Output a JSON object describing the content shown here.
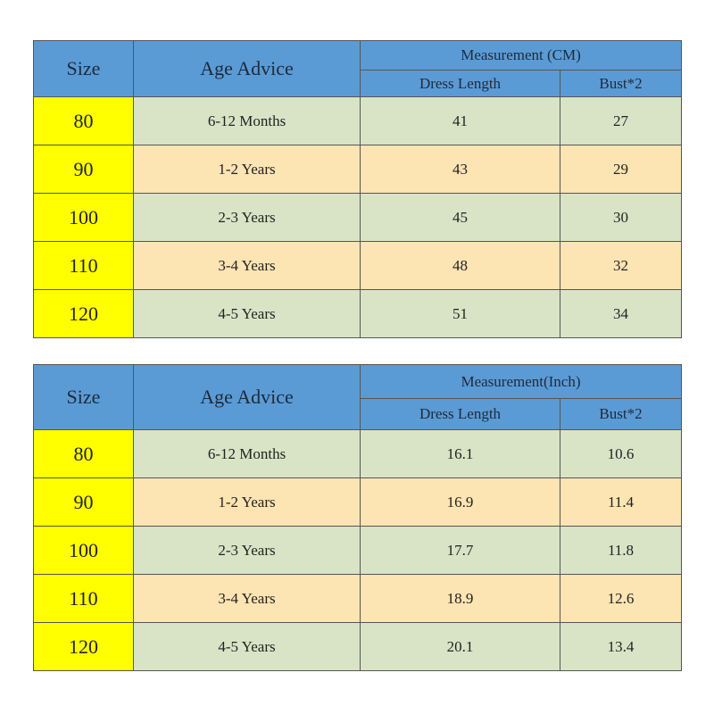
{
  "tables": [
    {
      "header": {
        "size": "Size",
        "age": "Age Advice",
        "measurement": "Measurement (CM)",
        "length": "Dress Length",
        "bust": "Bust*2"
      },
      "rows": [
        [
          "80",
          "6-12 Months",
          "41",
          "27"
        ],
        [
          "90",
          "1-2 Years",
          "43",
          "29"
        ],
        [
          "100",
          "2-3 Years",
          "45",
          "30"
        ],
        [
          "110",
          "3-4 Years",
          "48",
          "32"
        ],
        [
          "120",
          "4-5 Years",
          "51",
          "34"
        ]
      ]
    },
    {
      "header": {
        "size": "Size",
        "age": "Age Advice",
        "measurement": "Measurement(Inch)",
        "length": "Dress Length",
        "bust": "Bust*2"
      },
      "rows": [
        [
          "80",
          "6-12 Months",
          "16.1",
          "10.6"
        ],
        [
          "90",
          "1-2 Years",
          "16.9",
          "11.4"
        ],
        [
          "100",
          "2-3 Years",
          "17.7",
          "11.8"
        ],
        [
          "110",
          "3-4 Years",
          "18.9",
          "12.6"
        ],
        [
          "120",
          "4-5 Years",
          "20.1",
          "13.4"
        ]
      ]
    }
  ]
}
